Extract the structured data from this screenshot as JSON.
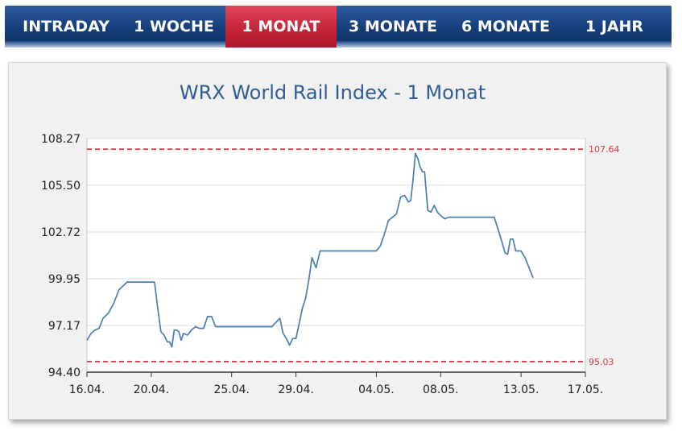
{
  "tabs": [
    {
      "label": "INTRADAY",
      "active": false
    },
    {
      "label": "1 WOCHE",
      "active": false
    },
    {
      "label": "1 MONAT",
      "active": true
    },
    {
      "label": "3 MONATE",
      "active": false
    },
    {
      "label": "6 MONATE",
      "active": false
    },
    {
      "label": "1 JAHR",
      "active": false
    }
  ],
  "colors": {
    "tab_bar": "#153d7a",
    "tab_active": "#c32235",
    "line": "#4a7fb5",
    "reference_line": "#d43a48",
    "title": "#2f5d93"
  },
  "chart_data": {
    "type": "line",
    "title": "WRX World Rail Index - 1 Monat",
    "xlabel": "",
    "ylabel": "",
    "x_ticks": [
      "16.04.",
      "20.04.",
      "25.04.",
      "29.04.",
      "04.05.",
      "08.05.",
      "13.05.",
      "17.05."
    ],
    "y_ticks": [
      "94.40",
      "97.17",
      "99.95",
      "102.72",
      "105.50",
      "108.27"
    ],
    "ylim": [
      94.4,
      108.27
    ],
    "xlim": [
      "2015-04-16",
      "2015-05-17"
    ],
    "grid": true,
    "reference_lines": [
      {
        "label": "107.64",
        "value": 107.64
      },
      {
        "label": "95.03",
        "value": 95.03
      }
    ],
    "series": [
      {
        "points": [
          [
            "2015-04-16",
            96.3
          ],
          [
            "2015-04-16",
            96.7
          ],
          [
            "2015-04-16",
            96.9
          ],
          [
            "2015-04-16",
            97.0
          ],
          [
            "2015-04-17",
            97.6
          ],
          [
            "2015-04-17",
            97.9
          ],
          [
            "2015-04-17",
            98.5
          ],
          [
            "2015-04-18",
            99.3
          ],
          [
            "2015-04-18",
            99.75
          ],
          [
            "2015-04-19",
            99.75
          ],
          [
            "2015-04-19",
            99.75
          ],
          [
            "2015-04-20",
            99.75
          ],
          [
            "2015-04-20",
            99.75
          ],
          [
            "2015-04-20",
            98.2
          ],
          [
            "2015-04-20",
            96.8
          ],
          [
            "2015-04-20",
            96.6
          ],
          [
            "2015-04-21",
            96.2
          ],
          [
            "2015-04-21",
            96.2
          ],
          [
            "2015-04-21",
            95.9
          ],
          [
            "2015-04-21",
            96.9
          ],
          [
            "2015-04-21",
            96.9
          ],
          [
            "2015-04-21",
            96.8
          ],
          [
            "2015-04-21",
            96.3
          ],
          [
            "2015-04-22",
            96.7
          ],
          [
            "2015-04-22",
            96.6
          ],
          [
            "2015-04-22",
            96.9
          ],
          [
            "2015-04-22",
            97.1
          ],
          [
            "2015-04-23",
            97.0
          ],
          [
            "2015-04-23",
            97.0
          ],
          [
            "2015-04-23",
            97.7
          ],
          [
            "2015-04-23",
            97.7
          ],
          [
            "2015-04-24",
            97.1
          ],
          [
            "2015-04-24",
            97.1
          ],
          [
            "2015-04-25",
            97.1
          ],
          [
            "2015-04-26",
            97.1
          ],
          [
            "2015-04-27",
            97.1
          ],
          [
            "2015-04-27",
            97.1
          ],
          [
            "2015-04-28",
            97.6
          ],
          [
            "2015-04-28",
            96.7
          ],
          [
            "2015-04-28",
            96.4
          ],
          [
            "2015-04-28",
            96.0
          ],
          [
            "2015-04-28",
            96.4
          ],
          [
            "2015-04-29",
            96.4
          ],
          [
            "2015-04-29",
            97.3
          ],
          [
            "2015-04-29",
            98.2
          ],
          [
            "2015-04-29",
            98.8
          ],
          [
            "2015-04-29",
            99.9
          ],
          [
            "2015-04-30",
            101.2
          ],
          [
            "2015-04-30",
            100.6
          ],
          [
            "2015-04-30",
            101.6
          ],
          [
            "2015-04-30",
            101.6
          ],
          [
            "2015-05-01",
            101.6
          ],
          [
            "2015-05-02",
            101.6
          ],
          [
            "2015-05-03",
            101.6
          ],
          [
            "2015-05-04",
            101.6
          ],
          [
            "2015-05-04",
            101.9
          ],
          [
            "2015-05-04",
            102.6
          ],
          [
            "2015-05-04",
            103.4
          ],
          [
            "2015-05-05",
            103.6
          ],
          [
            "2015-05-05",
            103.8
          ],
          [
            "2015-05-05",
            104.8
          ],
          [
            "2015-05-05",
            104.9
          ],
          [
            "2015-05-06",
            104.5
          ],
          [
            "2015-05-06",
            104.6
          ],
          [
            "2015-05-06",
            105.9
          ],
          [
            "2015-05-06",
            107.4
          ],
          [
            "2015-05-06",
            107.1
          ],
          [
            "2015-05-06",
            106.6
          ],
          [
            "2015-05-06",
            106.3
          ],
          [
            "2015-05-07",
            106.3
          ],
          [
            "2015-05-07",
            104.0
          ],
          [
            "2015-05-07",
            103.9
          ],
          [
            "2015-05-07",
            104.3
          ],
          [
            "2015-05-07",
            103.9
          ],
          [
            "2015-05-08",
            103.7
          ],
          [
            "2015-05-08",
            103.5
          ],
          [
            "2015-05-08",
            103.6
          ],
          [
            "2015-05-08",
            103.6
          ],
          [
            "2015-05-09",
            103.6
          ],
          [
            "2015-05-10",
            103.6
          ],
          [
            "2015-05-11",
            103.6
          ],
          [
            "2015-05-11",
            103.6
          ],
          [
            "2015-05-11",
            102.6
          ],
          [
            "2015-05-12",
            101.5
          ],
          [
            "2015-05-12",
            101.4
          ],
          [
            "2015-05-12",
            102.3
          ],
          [
            "2015-05-12",
            102.3
          ],
          [
            "2015-05-12",
            101.6
          ],
          [
            "2015-05-12",
            101.6
          ],
          [
            "2015-05-13",
            101.6
          ],
          [
            "2015-05-13",
            101.2
          ],
          [
            "2015-05-13",
            100.6
          ],
          [
            "2015-05-13",
            100.0
          ]
        ]
      }
    ]
  }
}
